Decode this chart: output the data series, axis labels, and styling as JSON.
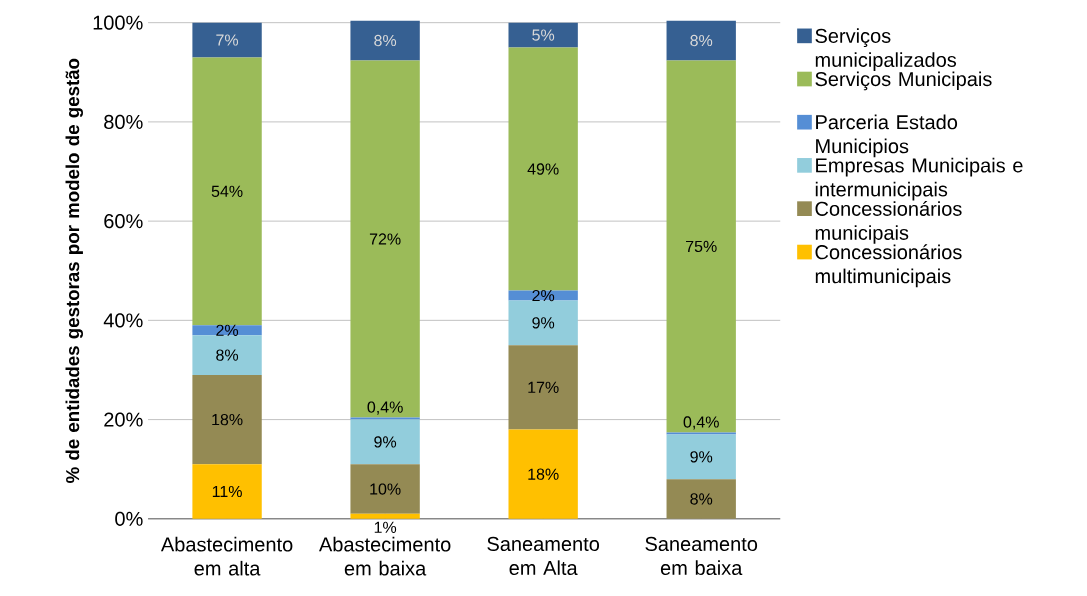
{
  "chart_data": {
    "type": "bar",
    "stacked": true,
    "ylabel": "% de entidades gestoras por modelo de gestão",
    "categories": [
      "Abastecimento em alta",
      "Abastecimento em baixa",
      "Saneamento em Alta",
      "Saneamento em baixa"
    ],
    "series": [
      {
        "name": "Concessionários multimunicipais",
        "color": "#ffc000",
        "values": [
          11,
          1,
          18,
          0
        ],
        "value_labels": [
          "11%",
          "1%",
          "18%",
          null
        ]
      },
      {
        "name": "Concessionários municipais",
        "color": "#948a54",
        "values": [
          18,
          10,
          17,
          8
        ],
        "value_labels": [
          "18%",
          "10%",
          "17%",
          "8%"
        ]
      },
      {
        "name": "Empresas Municipais e intermunicipais",
        "color": "#92cddc",
        "values": [
          8,
          9,
          9,
          9
        ],
        "value_labels": [
          "8%",
          "9%",
          "9%",
          "9%"
        ]
      },
      {
        "name": "Parceria Estado Municipios",
        "color": "#558ed5",
        "values": [
          2,
          0.4,
          2,
          0.4
        ],
        "value_labels": [
          "2%",
          "0,4%",
          "2%",
          "0,4%"
        ]
      },
      {
        "name": "Serviços Municipais",
        "color": "#9bbb59",
        "values": [
          54,
          72,
          49,
          75
        ],
        "value_labels": [
          "54%",
          "72%",
          "49%",
          "75%"
        ]
      },
      {
        "name": "Serviços municipalizados",
        "color": "#366092",
        "values": [
          7,
          8,
          5,
          8
        ],
        "value_labels": [
          "7%",
          "8%",
          "5%",
          "8%"
        ]
      }
    ],
    "ylim": [
      0,
      100
    ],
    "yticks": [
      {
        "value": 0,
        "label": "0%"
      },
      {
        "value": 20,
        "label": "20%"
      },
      {
        "value": 40,
        "label": "40%"
      },
      {
        "value": 60,
        "label": "60%"
      },
      {
        "value": 80,
        "label": "80%"
      },
      {
        "value": 100,
        "label": "100%"
      }
    ],
    "grid": "y",
    "legend": "right"
  }
}
